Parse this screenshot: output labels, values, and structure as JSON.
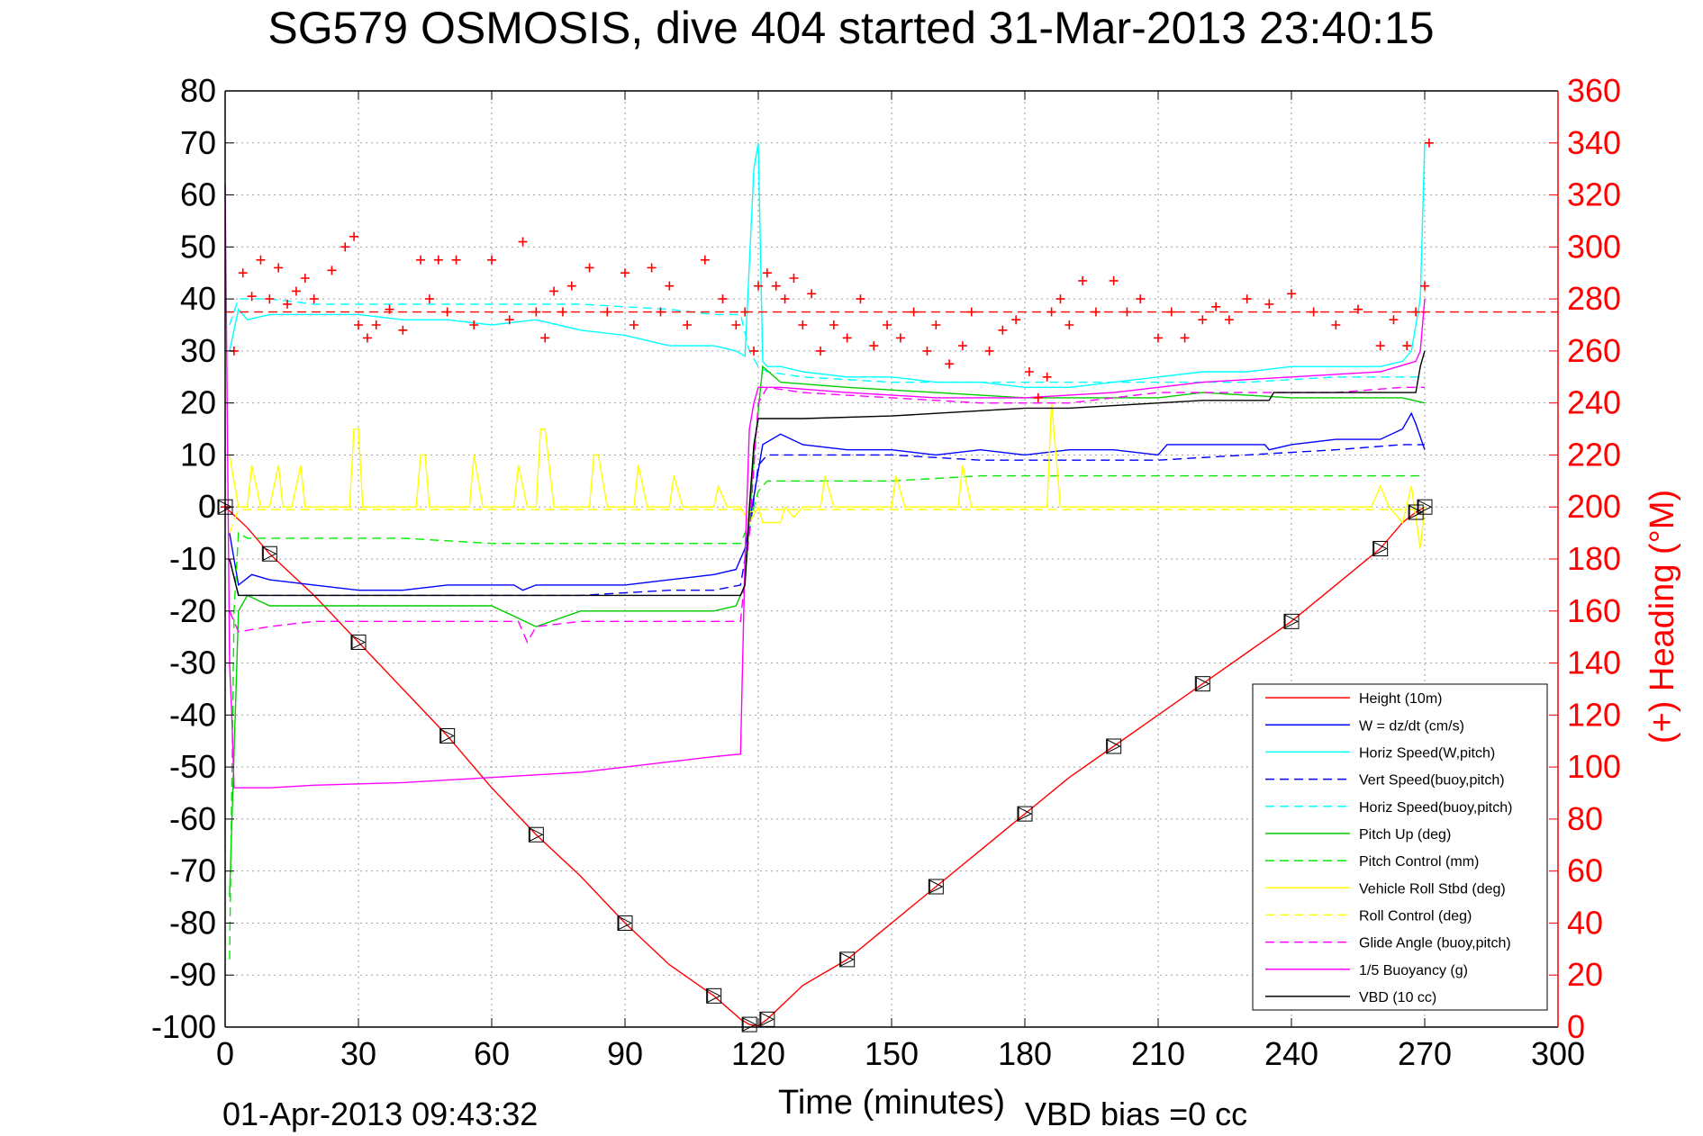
{
  "chart_data": {
    "type": "line",
    "title": "SG579 OSMOSIS, dive 404 started 31-Mar-2013 23:40:15",
    "xlabel": "Time (minutes)",
    "ylabel_right": "(+) Heading (°M)",
    "footer_timestamp": "01-Apr-2013 09:43:32",
    "footer_note": "VBD bias =0 cc",
    "xlim": [
      0,
      300
    ],
    "ylim_left": [
      -100,
      80
    ],
    "ylim_right": [
      0,
      360
    ],
    "xticks": [
      "0",
      "30",
      "60",
      "90",
      "120",
      "150",
      "180",
      "210",
      "240",
      "270",
      "300"
    ],
    "yticks_left": [
      "80",
      "70",
      "60",
      "50",
      "40",
      "30",
      "20",
      "10",
      "0",
      "-10",
      "-20",
      "-30",
      "-40",
      "-50",
      "-60",
      "-70",
      "-80",
      "-90",
      "-100"
    ],
    "yticks_right": [
      "360",
      "340",
      "320",
      "300",
      "280",
      "260",
      "240",
      "220",
      "200",
      "180",
      "160",
      "140",
      "120",
      "100",
      "80",
      "60",
      "40",
      "20",
      "0"
    ],
    "grid": true,
    "legend_position": "lower-right",
    "colors": {
      "right_axis": "#ff0000"
    },
    "series": [
      {
        "name": "Height (10m)",
        "color": "#ff0000",
        "dash": "solid",
        "axis": "left",
        "x": [
          0,
          5,
          10,
          20,
          30,
          40,
          50,
          60,
          70,
          80,
          90,
          100,
          110,
          116,
          118,
          120,
          122,
          130,
          140,
          150,
          160,
          170,
          180,
          190,
          200,
          210,
          220,
          230,
          240,
          250,
          260,
          265,
          268,
          270
        ],
        "y": [
          0,
          -4,
          -9,
          -17,
          -26,
          -35,
          -44,
          -54,
          -63,
          -71,
          -80,
          -88,
          -94,
          -98.5,
          -99.5,
          -99.8,
          -98.5,
          -92,
          -87,
          -80,
          -73,
          -66,
          -59,
          -52,
          -46,
          -40,
          -34,
          -28,
          -22,
          -15,
          -8,
          -3,
          -1,
          0
        ]
      },
      {
        "name": "W = dz/dt (cm/s)",
        "color": "#0000ff",
        "dash": "solid",
        "axis": "left",
        "x": [
          1,
          3,
          6,
          10,
          20,
          30,
          40,
          50,
          60,
          65,
          67,
          70,
          80,
          90,
          100,
          110,
          115,
          117,
          119,
          121,
          125,
          130,
          140,
          150,
          160,
          170,
          180,
          190,
          200,
          210,
          212,
          220,
          230,
          234,
          235,
          240,
          250,
          260,
          265,
          267,
          268,
          270
        ],
        "y": [
          -5,
          -15,
          -13,
          -14,
          -15,
          -16,
          -16,
          -15,
          -15,
          -15,
          -16,
          -15,
          -15,
          -15,
          -14,
          -13,
          -12,
          -8,
          2,
          12,
          14,
          12,
          11,
          11,
          10,
          11,
          10,
          11,
          11,
          10,
          12,
          12,
          12,
          12,
          11,
          12,
          13,
          13,
          15,
          18,
          16,
          11
        ]
      },
      {
        "name": "Horiz Speed(W,pitch)",
        "color": "#00ffff",
        "dash": "solid",
        "axis": "left",
        "x": [
          1,
          3,
          5,
          10,
          20,
          30,
          40,
          50,
          60,
          70,
          80,
          90,
          100,
          110,
          115,
          117,
          119,
          120,
          121,
          122,
          125,
          130,
          140,
          150,
          160,
          170,
          180,
          190,
          200,
          210,
          220,
          230,
          240,
          250,
          260,
          265,
          267,
          269,
          270
        ],
        "y": [
          30,
          38,
          36,
          37,
          37,
          37,
          36,
          36,
          35,
          36,
          34,
          33,
          31,
          31,
          30,
          29,
          65,
          70,
          28,
          27,
          27,
          26,
          25,
          25,
          24,
          24,
          23,
          23,
          24,
          25,
          26,
          26,
          27,
          27,
          27,
          28,
          30,
          40,
          70
        ]
      },
      {
        "name": "Vert Speed(buoy,pitch)",
        "color": "#0000ff",
        "dash": "dashed",
        "axis": "left",
        "x": [
          1,
          3,
          10,
          20,
          40,
          60,
          80,
          100,
          110,
          116,
          118,
          120,
          122,
          130,
          150,
          170,
          190,
          210,
          230,
          250,
          265,
          270
        ],
        "y": [
          -10,
          -17,
          -17,
          -17,
          -17,
          -17,
          -17,
          -16,
          -16,
          -15,
          -5,
          8,
          10,
          10,
          10,
          9,
          9,
          9,
          10,
          11,
          12,
          12
        ]
      },
      {
        "name": "Horiz Speed(buoy,pitch)",
        "color": "#00ffff",
        "dash": "dashed",
        "axis": "left",
        "x": [
          1,
          3,
          10,
          20,
          40,
          60,
          80,
          100,
          110,
          116,
          118,
          120,
          122,
          130,
          150,
          170,
          190,
          210,
          230,
          250,
          265,
          270
        ],
        "y": [
          35,
          40,
          40,
          39,
          39,
          39,
          39,
          38,
          37,
          37,
          30,
          27,
          26,
          25,
          24,
          24,
          24,
          24,
          24,
          25,
          25,
          25
        ]
      },
      {
        "name": "Pitch Up (deg)",
        "color": "#00cc00",
        "dash": "solid",
        "axis": "left",
        "x": [
          1,
          3,
          5,
          10,
          20,
          40,
          60,
          70,
          80,
          100,
          110,
          115,
          117,
          119,
          121,
          125,
          140,
          160,
          180,
          200,
          210,
          220,
          240,
          260,
          265,
          270
        ],
        "y": [
          -75,
          -20,
          -17,
          -19,
          -19,
          -19,
          -19,
          -23,
          -20,
          -20,
          -20,
          -19,
          -15,
          10,
          27,
          24,
          23,
          22,
          21,
          21,
          21,
          22,
          21,
          21,
          21,
          20
        ]
      },
      {
        "name": "Pitch Control (mm)",
        "color": "#00ee00",
        "dash": "dashed",
        "axis": "left",
        "x": [
          1,
          2,
          3,
          5,
          10,
          20,
          40,
          60,
          80,
          100,
          110,
          116,
          118,
          120,
          122,
          130,
          150,
          170,
          190,
          210,
          230,
          250,
          265,
          270
        ],
        "y": [
          -87,
          -20,
          -5,
          -6,
          -6,
          -6,
          -6,
          -7,
          -7,
          -7,
          -7,
          -7,
          -3,
          3,
          5,
          5,
          5,
          6,
          6,
          6,
          6,
          6,
          6,
          6
        ]
      },
      {
        "name": "Vehicle Roll Stbd (deg)",
        "color": "#ffff00",
        "dash": "solid",
        "axis": "left",
        "x": [
          1,
          3,
          5,
          6,
          8,
          10,
          12,
          13,
          15,
          17,
          18,
          20,
          28,
          29,
          30,
          31,
          33,
          43,
          44,
          45,
          46,
          48,
          55,
          56,
          58,
          65,
          66,
          68,
          70,
          71,
          72,
          74,
          82,
          83,
          84,
          86,
          92,
          93,
          95,
          100,
          101,
          103,
          110,
          111,
          113,
          116,
          118,
          120,
          121,
          125,
          126,
          128,
          130,
          134,
          135,
          137,
          150,
          151,
          153,
          165,
          166,
          168,
          185,
          186,
          188,
          200,
          220,
          240,
          258,
          260,
          262,
          265,
          267,
          269,
          270
        ],
        "y": [
          10,
          0,
          0,
          8,
          0,
          0,
          8,
          0,
          0,
          8,
          0,
          0,
          0,
          15,
          15,
          0,
          0,
          0,
          10,
          10,
          0,
          0,
          0,
          10,
          0,
          0,
          8,
          0,
          0,
          15,
          15,
          0,
          0,
          10,
          10,
          0,
          0,
          8,
          0,
          0,
          6,
          0,
          0,
          4,
          0,
          0,
          -3,
          0,
          -3,
          -3,
          0,
          -2,
          0,
          0,
          6,
          0,
          0,
          6,
          0,
          0,
          8,
          0,
          0,
          20,
          0,
          0,
          0,
          0,
          0,
          4,
          0,
          -3,
          4,
          -8,
          0
        ]
      },
      {
        "name": "Roll Control (deg)",
        "color": "#ffff00",
        "dash": "dashed",
        "axis": "left",
        "x": [
          1,
          3,
          40,
          80,
          116,
          118,
          120,
          160,
          200,
          240,
          265,
          270
        ],
        "y": [
          -5,
          -0.5,
          -0.5,
          -0.5,
          -0.5,
          -1,
          -0.5,
          -0.5,
          -0.5,
          -0.5,
          -0.5,
          -0.5
        ]
      },
      {
        "name": "Glide Angle (buoy,pitch)",
        "color": "#ff00ff",
        "dash": "dashed",
        "axis": "left",
        "x": [
          1,
          3,
          10,
          20,
          40,
          60,
          66,
          68,
          70,
          80,
          100,
          110,
          116,
          118,
          120,
          122,
          130,
          150,
          170,
          190,
          210,
          230,
          250,
          265,
          270
        ],
        "y": [
          -20,
          -24,
          -23,
          -22,
          -22,
          -22,
          -22,
          -26,
          -23,
          -22,
          -22,
          -22,
          -22,
          -5,
          20,
          23,
          22,
          21,
          20,
          20,
          22,
          22,
          22,
          23,
          23
        ]
      },
      {
        "name": "1/5 Buoyancy (g)",
        "color": "#ff00ff",
        "dash": "solid",
        "axis": "left",
        "x": [
          0,
          1,
          1.5,
          2,
          3,
          10,
          20,
          40,
          60,
          80,
          100,
          110,
          116,
          117,
          118,
          119,
          120,
          121,
          125,
          140,
          160,
          180,
          200,
          210,
          220,
          240,
          260,
          268,
          269,
          270
        ],
        "y": [
          62,
          -30,
          -40,
          -54,
          -54,
          -54,
          -53.5,
          -53,
          -52,
          -51,
          -49,
          -48,
          -47.5,
          -10,
          15,
          20,
          23,
          23,
          23,
          22,
          21,
          21,
          22,
          23,
          24,
          25,
          26,
          28,
          30,
          40
        ]
      },
      {
        "name": "VBD (10 cc)",
        "color": "#000000",
        "dash": "solid",
        "axis": "left",
        "x": [
          1,
          3,
          10,
          20,
          40,
          60,
          80,
          100,
          116,
          117,
          118,
          119,
          120,
          122,
          130,
          150,
          160,
          170,
          180,
          190,
          200,
          210,
          220,
          235,
          236,
          250,
          268,
          269,
          270
        ],
        "y": [
          -10,
          -17,
          -17,
          -17,
          -17,
          -17,
          -17,
          -17,
          -17,
          -15,
          0,
          12,
          17,
          17,
          17,
          17.5,
          18,
          18.5,
          19,
          19,
          19.5,
          20,
          20.5,
          20.5,
          22,
          22,
          22,
          27,
          30
        ]
      },
      {
        "name": "Heading",
        "color": "#ff0000",
        "dash": "markers",
        "axis": "right",
        "x": [
          0,
          2,
          4,
          6,
          8,
          10,
          12,
          14,
          16,
          18,
          20,
          24,
          27,
          29,
          30,
          32,
          34,
          37,
          40,
          44,
          46,
          48,
          50,
          52,
          56,
          60,
          64,
          67,
          70,
          72,
          74,
          76,
          78,
          82,
          86,
          90,
          92,
          96,
          98,
          100,
          104,
          108,
          112,
          115,
          117,
          119,
          120,
          122,
          124,
          126,
          128,
          130,
          132,
          134,
          137,
          140,
          143,
          146,
          149,
          152,
          155,
          158,
          160,
          163,
          166,
          168,
          172,
          175,
          178,
          181,
          183,
          185,
          186,
          188,
          190,
          193,
          196,
          200,
          203,
          206,
          210,
          213,
          216,
          220,
          223,
          226,
          230,
          235,
          240,
          245,
          250,
          255,
          260,
          263,
          266,
          268,
          270,
          271
        ],
        "y": [
          200,
          260,
          290,
          281,
          295,
          280,
          292,
          278,
          283,
          288,
          280,
          291,
          300,
          304,
          270,
          265,
          270,
          276,
          268,
          295,
          280,
          295,
          275,
          295,
          270,
          295,
          272,
          302,
          275,
          265,
          283,
          275,
          285,
          292,
          275,
          290,
          270,
          292,
          275,
          285,
          270,
          295,
          280,
          270,
          275,
          260,
          285,
          290,
          285,
          280,
          288,
          270,
          282,
          260,
          270,
          265,
          280,
          262,
          270,
          265,
          275,
          260,
          270,
          255,
          262,
          275,
          260,
          268,
          272,
          252,
          242,
          250,
          275,
          280,
          270,
          287,
          275,
          287,
          275,
          280,
          265,
          275,
          265,
          272,
          277,
          272,
          280,
          278,
          282,
          275,
          270,
          276,
          262,
          272,
          262,
          275,
          285,
          340
        ]
      },
      {
        "name": "Heading mean",
        "color": "#ff0000",
        "dash": "dashed",
        "axis": "right",
        "x": [
          0,
          300
        ],
        "y": [
          275,
          275
        ]
      }
    ]
  }
}
